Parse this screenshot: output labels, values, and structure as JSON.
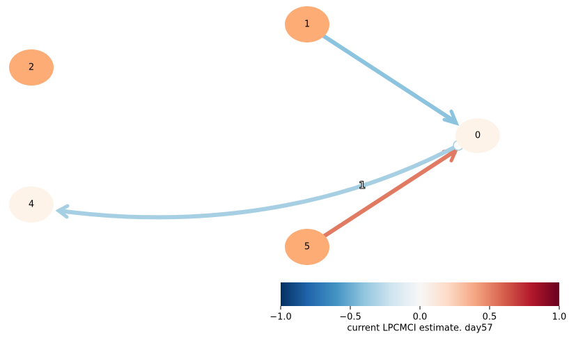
{
  "nodes": [
    {
      "label": "0"
    },
    {
      "label": "1"
    },
    {
      "label": "2"
    },
    {
      "label": "4"
    },
    {
      "label": "5"
    }
  ],
  "edges": [
    {
      "label": "1"
    }
  ],
  "colorbar": {
    "label": "current LPCMCI estimate. day57",
    "range": [
      -1,
      1
    ],
    "ticks": [
      {
        "value": -1,
        "label": "−1.0"
      },
      {
        "value": -0.5,
        "label": "−0.5"
      },
      {
        "value": 0,
        "label": "0.0"
      },
      {
        "value": 0.5,
        "label": "0.5"
      },
      {
        "value": 1,
        "label": "1.0"
      }
    ]
  }
}
